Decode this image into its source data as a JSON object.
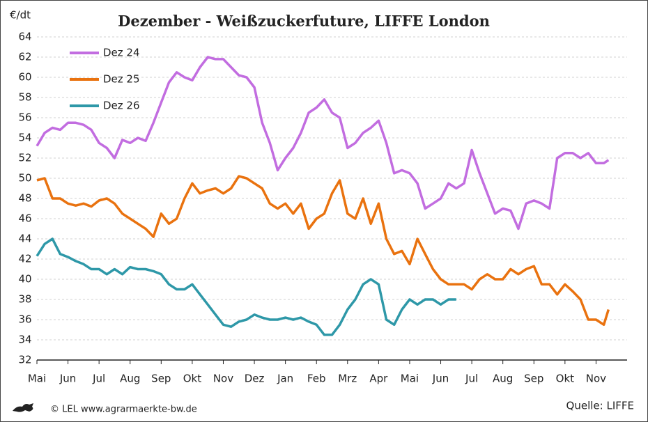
{
  "chart_data": {
    "type": "line",
    "title": "Dezember - Weißzuckerfuture, LIFFE London",
    "y_label": "€/dt",
    "footer_left": "© LEL www.agrarmaerkte-bw.de",
    "footer_right": "Quelle: LIFFE",
    "x": [
      0,
      0.25,
      0.5,
      0.75,
      1,
      1.25,
      1.5,
      1.75,
      2,
      2.25,
      2.5,
      2.75,
      3,
      3.25,
      3.5,
      3.75,
      4,
      4.25,
      4.5,
      4.75,
      5,
      5.25,
      5.5,
      5.75,
      6,
      6.25,
      6.5,
      6.75,
      7,
      7.25,
      7.5,
      7.75,
      8,
      8.25,
      8.5,
      8.75,
      9,
      9.25,
      9.5,
      9.75,
      10,
      10.25,
      10.5,
      10.75,
      11,
      11.25,
      11.5,
      11.75,
      12,
      12.25,
      12.5,
      12.75,
      13,
      13.25,
      13.5,
      13.75,
      14,
      14.25,
      14.5,
      14.75,
      15,
      15.25,
      15.5,
      15.75,
      16,
      16.25,
      16.5,
      16.75,
      17,
      17.25,
      17.5,
      17.75,
      18,
      18.25,
      18.4
    ],
    "xlim": [
      0,
      19
    ],
    "xticks": [
      {
        "value": 0,
        "label": "Mai"
      },
      {
        "value": 1,
        "label": "Jun"
      },
      {
        "value": 2,
        "label": "Jul"
      },
      {
        "value": 3,
        "label": "Aug"
      },
      {
        "value": 4,
        "label": "Sep"
      },
      {
        "value": 5,
        "label": "Okt"
      },
      {
        "value": 6,
        "label": "Nov"
      },
      {
        "value": 7,
        "label": "Dez"
      },
      {
        "value": 8,
        "label": "Jan"
      },
      {
        "value": 9,
        "label": "Feb"
      },
      {
        "value": 10,
        "label": "Mrz"
      },
      {
        "value": 11,
        "label": "Apr"
      },
      {
        "value": 12,
        "label": "Mai"
      },
      {
        "value": 13,
        "label": "Jun"
      },
      {
        "value": 14,
        "label": "Jul"
      },
      {
        "value": 15,
        "label": "Aug"
      },
      {
        "value": 16,
        "label": "Sep"
      },
      {
        "value": 17,
        "label": "Okt"
      },
      {
        "value": 18,
        "label": "Nov"
      }
    ],
    "ylim": [
      32,
      64
    ],
    "yticks": [
      32,
      34,
      36,
      38,
      40,
      42,
      44,
      46,
      48,
      50,
      52,
      54,
      56,
      58,
      60,
      62,
      64
    ],
    "grid": true,
    "legend": "top-left",
    "series": [
      {
        "name": "Dez 24",
        "color": "#c26de0",
        "values": [
          53.2,
          54.5,
          55.0,
          54.8,
          55.5,
          55.5,
          55.3,
          54.8,
          53.5,
          53.0,
          52.0,
          53.8,
          53.5,
          54.0,
          53.7,
          55.5,
          57.5,
          59.5,
          60.5,
          60.0,
          59.7,
          61.0,
          62.0,
          61.8,
          61.8,
          61.0,
          60.2,
          60.0,
          59.0,
          55.5,
          53.5,
          50.8,
          52.0,
          53.0,
          54.5,
          56.5,
          57.0,
          57.8,
          56.5,
          56.0,
          53.0,
          53.5,
          54.5,
          55.0,
          55.7,
          53.5,
          50.5,
          50.8,
          50.5,
          49.5,
          47.0,
          47.5,
          48.0,
          49.5,
          49.0,
          49.5,
          52.8,
          50.5,
          48.5,
          46.5,
          47.0,
          46.8,
          45.0,
          47.5,
          47.8,
          47.5,
          47.0,
          52.0,
          52.5,
          52.5,
          52.0,
          52.5,
          51.5,
          51.5,
          51.8
        ]
      },
      {
        "name": "Dez 25",
        "color": "#e9720f",
        "values": [
          49.8,
          50.0,
          48.0,
          48.0,
          47.5,
          47.3,
          47.5,
          47.2,
          47.8,
          48.0,
          47.5,
          46.5,
          46.0,
          45.5,
          45.0,
          44.2,
          46.5,
          45.5,
          46.0,
          48.0,
          49.5,
          48.5,
          48.8,
          49.0,
          48.5,
          49.0,
          50.2,
          50.0,
          49.5,
          49.0,
          47.5,
          47.0,
          47.5,
          46.5,
          47.5,
          45.0,
          46.0,
          46.5,
          48.5,
          49.8,
          46.5,
          46.0,
          48.0,
          45.5,
          47.5,
          44.0,
          42.5,
          42.8,
          41.5,
          44.0,
          42.5,
          41.0,
          40.0,
          39.5,
          39.5,
          39.5,
          39.0,
          40.0,
          40.5,
          40.0,
          40.0,
          41.0,
          40.5,
          41.0,
          41.3,
          39.5,
          39.5,
          38.5,
          39.5,
          38.8,
          38.0,
          36.0,
          36.0,
          35.5,
          37.0
        ]
      },
      {
        "name": "Dez 26",
        "color": "#2e98a8",
        "values": [
          42.3,
          43.5,
          44.0,
          42.5,
          42.2,
          41.8,
          41.5,
          41.0,
          41.0,
          40.5,
          41.0,
          40.5,
          41.2,
          41.0,
          41.0,
          40.8,
          40.5,
          39.5,
          39.0,
          39.0,
          39.5,
          38.5,
          37.5,
          36.5,
          35.5,
          35.3,
          35.8,
          36.0,
          36.5,
          36.2,
          36.0,
          36.0,
          36.2,
          36.0,
          36.2,
          35.8,
          35.5,
          34.5,
          34.5,
          35.5,
          37.0,
          38.0,
          39.5,
          40.0,
          39.5,
          36.0,
          35.5,
          37.0,
          38.0,
          37.5,
          38.0,
          38.0,
          37.5,
          38.0,
          38.0,
          null,
          null,
          null,
          null,
          null,
          null,
          null,
          null,
          null,
          null,
          null,
          null,
          null,
          null,
          null,
          null,
          null,
          null,
          null,
          null
        ]
      }
    ]
  }
}
